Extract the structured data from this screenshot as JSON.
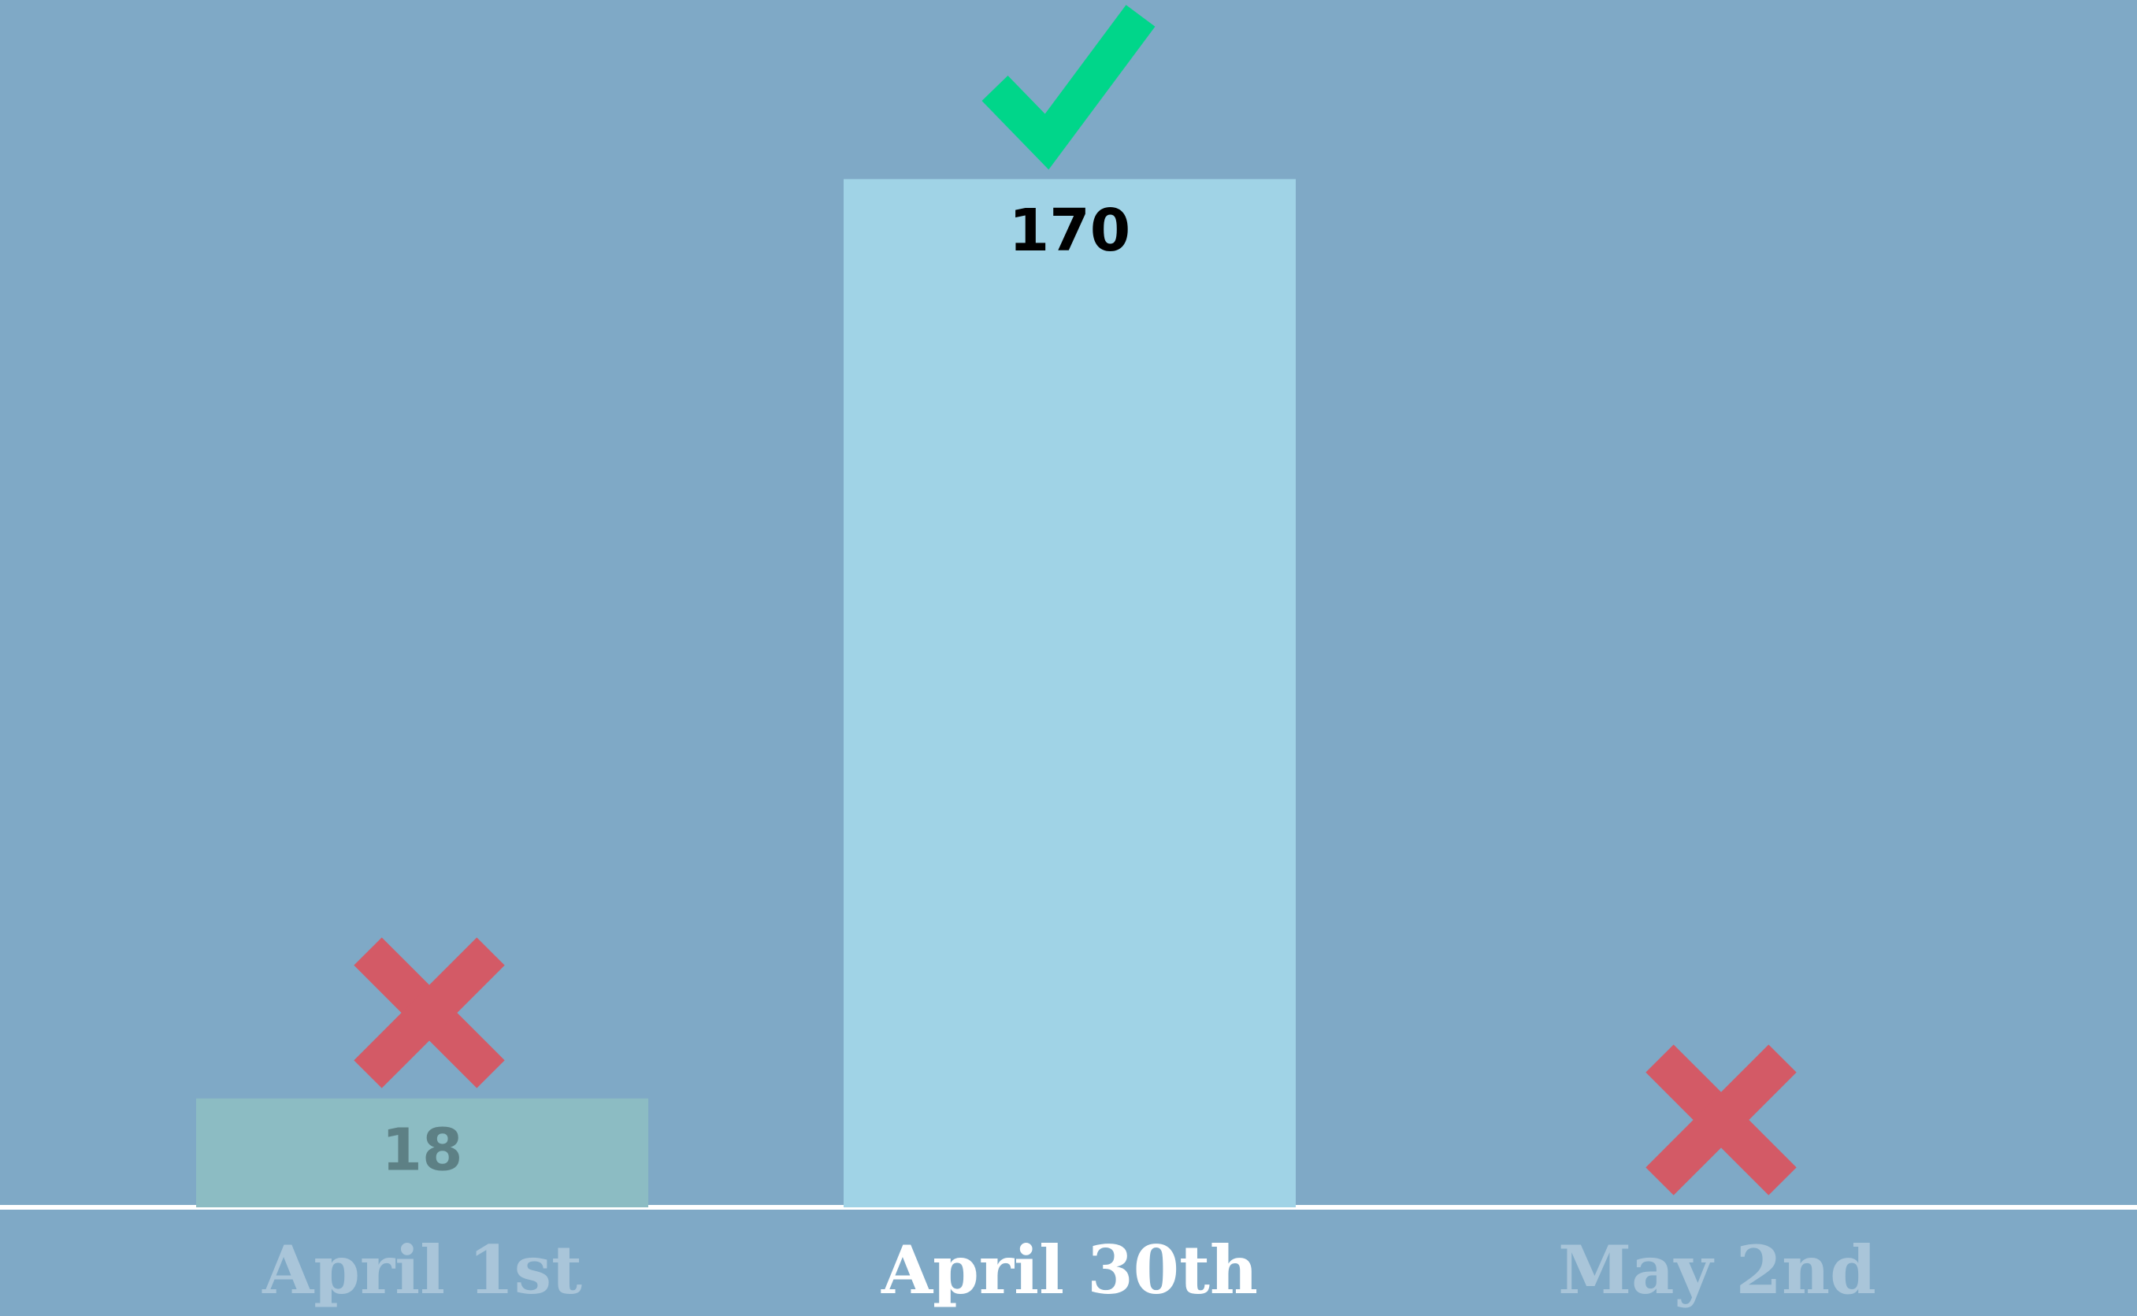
{
  "chart_data": {
    "type": "bar",
    "categories": [
      "April 1st",
      "April 30th",
      "May 2nd"
    ],
    "values": [
      18,
      170,
      null
    ],
    "colors": [
      "#8cbcc3",
      "#a0d3e6",
      "#a0d3e6"
    ],
    "label_colors": [
      "#a9c5d9",
      "#ffffff",
      "#a9c5d9"
    ],
    "value_label_colors": [
      "#5d8085",
      "#000000",
      "#000000"
    ]
  }
}
